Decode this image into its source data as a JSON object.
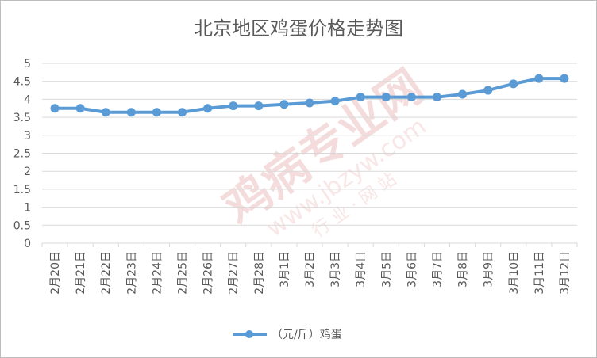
{
  "chart_data": {
    "type": "line",
    "title": "北京地区鸡蛋价格走势图",
    "categories": [
      "2月20日",
      "2月21日",
      "2月22日",
      "2月23日",
      "2月24日",
      "2月25日",
      "2月26日",
      "2月27日",
      "2月28日",
      "3月1日",
      "3月2日",
      "3月3日",
      "3月4日",
      "3月5日",
      "3月6日",
      "3月7日",
      "3月8日",
      "3月9日",
      "3月10日",
      "3月11日",
      "3月12日"
    ],
    "series": [
      {
        "name": "（元/斤）鸡蛋",
        "values": [
          3.75,
          3.75,
          3.64,
          3.64,
          3.64,
          3.64,
          3.75,
          3.82,
          3.82,
          3.86,
          3.9,
          3.95,
          4.06,
          4.06,
          4.06,
          4.06,
          4.14,
          4.25,
          4.43,
          4.58,
          4.58
        ]
      }
    ],
    "ylim": [
      0,
      5
    ],
    "yticks": [
      "0",
      "0.5",
      "1",
      "1.5",
      "2",
      "2.5",
      "3",
      "3.5",
      "4",
      "4.5",
      "5"
    ],
    "grid": true,
    "legend_position": "bottom",
    "colors": {
      "line": "#5b9bd5",
      "grid": "#d9d9d9",
      "text": "#595959"
    }
  },
  "watermark": {
    "text1": "鸡病专业网",
    "text2": "www.jbzyw.com",
    "text3": "行 业 · 网 站"
  }
}
